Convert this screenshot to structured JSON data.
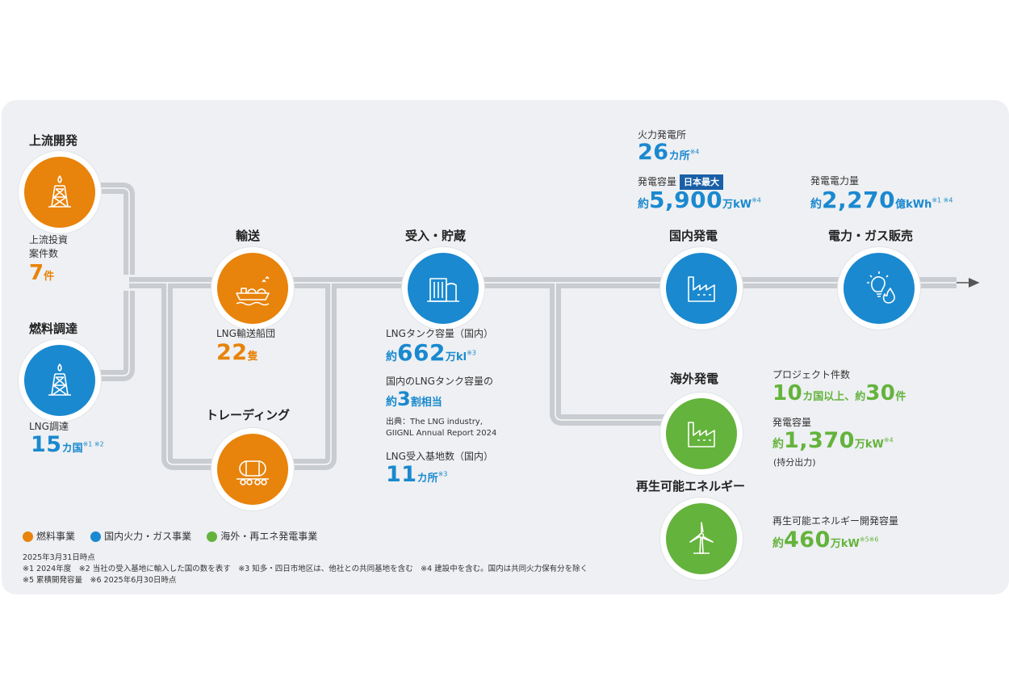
{
  "stages": {
    "upstream": "上流開発",
    "fuel": "燃料調達",
    "transport": "輸送",
    "trading": "トレーディング",
    "storage": "受入・貯蔵",
    "domestic": "国内発電",
    "sales": "電力・ガス販売",
    "overseas": "海外発電",
    "renewable": "再生可能エネルギー"
  },
  "stats": {
    "upstream": {
      "label_line1": "上流投資",
      "label_line2": "案件数",
      "value": "7",
      "unit": "件"
    },
    "fuel": {
      "label": "LNG調達",
      "value": "15",
      "unit": "カ国",
      "note": "※1 ※2"
    },
    "transport": {
      "label": "LNG輸送船団",
      "value": "22",
      "unit": "隻"
    },
    "tank": {
      "label": "LNGタンク容量（国内）",
      "prefix": "約",
      "value": "662",
      "unit": "万kl",
      "note": "※3"
    },
    "share": {
      "label": "国内のLNGタンク容量の",
      "prefix": "約",
      "value": "3",
      "unit": "割相当"
    },
    "source": {
      "line1": "出典：The LNG industry,",
      "line2": "GIIGNL Annual Report 2024"
    },
    "terminals": {
      "label": "LNG受入基地数（国内）",
      "value": "11",
      "unit": "カ所",
      "note": "※3"
    },
    "thermal": {
      "label": "火力発電所",
      "value": "26",
      "unit": "カ所",
      "note": "※4"
    },
    "domestic_capacity": {
      "label": "発電容量",
      "badge": "日本最大",
      "prefix": "約",
      "value": "5,900",
      "unit": "万kW",
      "note": "※4"
    },
    "sales": {
      "label": "発電電力量",
      "prefix": "約",
      "value": "2,270",
      "unit": "億kWh",
      "note": "※1 ※4"
    },
    "projects": {
      "label": "プロジェクト件数",
      "value1": "10",
      "unit1": "カ国以上、約",
      "value2": "30",
      "unit2": "件"
    },
    "overseas_capacity": {
      "label": "発電容量",
      "prefix": "約",
      "value": "1,370",
      "unit": "万kW",
      "note": "※4",
      "sub": "(持分出力)"
    },
    "renewable": {
      "label": "再生可能エネルギー開発容量",
      "prefix": "約",
      "value": "460",
      "unit": "万kW",
      "note": "※5※6"
    }
  },
  "legend": [
    {
      "label": "燃料事業",
      "color": "#e8830b"
    },
    {
      "label": "国内火力・ガス事業",
      "color": "#1a89cf"
    },
    {
      "label": "海外・再エネ発電事業",
      "color": "#64b33c"
    }
  ],
  "footnotes": {
    "line1": "2025年3月31日時点",
    "line2": "※1 2024年度　※2 当社の受入基地に輸入した国の数を表す　※3 知多・四日市地区は、他社との共同基地を含む　※4 建設中を含む。国内は共同火力保有分を除く",
    "line3": "※5 累積開発容量　※6 2025年6月30日時点"
  },
  "icons": {
    "upstream": "oil-rig-icon",
    "fuel": "oil-rig-icon",
    "transport": "lng-ship-icon",
    "trading": "tanker-truck-icon",
    "storage": "storage-tank-icon",
    "domestic": "factory-icon",
    "sales": "lightbulb-flame-icon",
    "overseas": "factory-icon",
    "renewable": "wind-turbine-icon"
  }
}
